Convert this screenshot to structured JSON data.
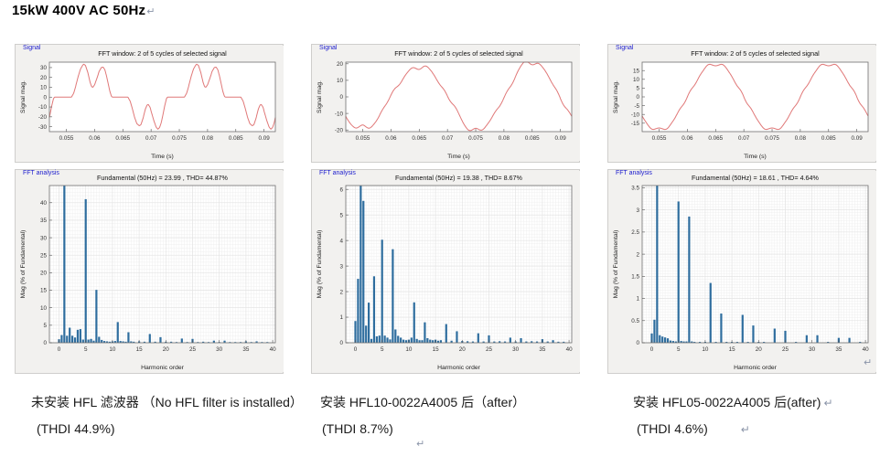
{
  "title": "15kW 400V AC 50Hz",
  "marks": {
    "pilcrow": "↵"
  },
  "colors": {
    "bar": "#2e6d9e",
    "wave": "#e07878",
    "panel_label_blue": "#1b1bcd",
    "panel_bg": "#f2f1ef"
  },
  "captions": [
    {
      "line1": "未安装 HFL 滤波器 （No HFL filter is installed）",
      "line2": "(THDI 44.9%)"
    },
    {
      "line1": "安装 HFL10-0022A4005 后（after）",
      "line2": "(THDI 8.7%)"
    },
    {
      "line1": "安装 HFL05-0022A4005 后(after)",
      "line2": "(THDI 4.6%)"
    }
  ],
  "chart_data": [
    {
      "id": "signal-1",
      "type": "line",
      "kind": "signal",
      "panel_label": "Signal",
      "title": "FFT window: 2 of 5 cycles of selected signal",
      "xlabel": "Time (s)",
      "ylabel": "Signal mag.",
      "xlim": [
        52,
        92
      ],
      "ylim": [
        -35,
        35.5
      ],
      "xticks": [
        [
          55,
          "0.055"
        ],
        [
          60,
          "0.06"
        ],
        [
          65,
          "0.065"
        ],
        [
          70,
          "0.07"
        ],
        [
          75,
          "0.075"
        ],
        [
          80,
          "0.08"
        ],
        [
          85,
          "0.085"
        ],
        [
          90,
          "0.09"
        ]
      ],
      "yticks": [
        [
          -30,
          "-30"
        ],
        [
          -20,
          "-20"
        ],
        [
          -10,
          "-10"
        ],
        [
          0,
          "0"
        ],
        [
          10,
          "10"
        ],
        [
          20,
          "20"
        ],
        [
          30,
          "30"
        ]
      ],
      "waveform": {
        "mode": "samples",
        "period_ms": 20,
        "cycle_start_ms": 52.9,
        "points": [
          [
            0,
            0
          ],
          [
            3.0,
            0
          ],
          [
            3.4,
            4
          ],
          [
            3.8,
            12
          ],
          [
            4.2,
            21
          ],
          [
            4.6,
            28.5
          ],
          [
            5.0,
            32.5
          ],
          [
            5.2,
            33.5
          ],
          [
            5.5,
            32
          ],
          [
            5.9,
            25
          ],
          [
            6.3,
            15
          ],
          [
            6.6,
            10.5
          ],
          [
            6.8,
            10
          ],
          [
            7.1,
            12.5
          ],
          [
            7.5,
            19
          ],
          [
            7.9,
            26
          ],
          [
            8.3,
            30
          ],
          [
            8.6,
            30.5
          ],
          [
            8.9,
            28
          ],
          [
            9.2,
            22
          ],
          [
            9.5,
            14
          ],
          [
            9.8,
            6
          ],
          [
            10.1,
            0.5
          ],
          [
            10.3,
            0
          ],
          [
            13.0,
            0
          ],
          [
            13.4,
            -4
          ],
          [
            13.8,
            -12
          ],
          [
            14.2,
            -21
          ],
          [
            14.6,
            -27
          ],
          [
            15.0,
            -29
          ],
          [
            15.3,
            -28
          ],
          [
            15.7,
            -21
          ],
          [
            16.1,
            -12
          ],
          [
            16.4,
            -8
          ],
          [
            16.6,
            -7.5
          ],
          [
            16.9,
            -10
          ],
          [
            17.2,
            -16
          ],
          [
            17.6,
            -24
          ],
          [
            18.0,
            -30.5
          ],
          [
            18.3,
            -32.5
          ],
          [
            18.6,
            -31
          ],
          [
            18.9,
            -26
          ],
          [
            19.2,
            -18
          ],
          [
            19.5,
            -9
          ],
          [
            19.8,
            -2
          ],
          [
            20,
            0
          ]
        ]
      }
    },
    {
      "id": "fft-1",
      "type": "bar",
      "kind": "fft",
      "panel_label": "FFT analysis",
      "title": "Fundamental (50Hz) = 23.99 , THD= 44.87%",
      "xlabel": "Harmonic order",
      "ylabel": "Mag (% of Fundamental)",
      "xlim": [
        -1.8,
        40.5
      ],
      "ylim": [
        0,
        44.9
      ],
      "xticks": [
        [
          0,
          "0"
        ],
        [
          5,
          "5"
        ],
        [
          10,
          "10"
        ],
        [
          15,
          "15"
        ],
        [
          20,
          "20"
        ],
        [
          25,
          "25"
        ],
        [
          30,
          "30"
        ],
        [
          35,
          "35"
        ],
        [
          40,
          "40"
        ]
      ],
      "yticks": [
        [
          0,
          "0"
        ],
        [
          5,
          "5"
        ],
        [
          10,
          "10"
        ],
        [
          15,
          "15"
        ],
        [
          20,
          "20"
        ],
        [
          25,
          "25"
        ],
        [
          30,
          "30"
        ],
        [
          35,
          "35"
        ],
        [
          40,
          "40"
        ]
      ],
      "grid_minor": [
        0.5,
        1
      ],
      "bars": [
        [
          0,
          1.0
        ],
        [
          0.5,
          2.2
        ],
        [
          1,
          100
        ],
        [
          1.5,
          2.0
        ],
        [
          2,
          4.3
        ],
        [
          2.5,
          2.0
        ],
        [
          3,
          1.5
        ],
        [
          3.5,
          3.7
        ],
        [
          4,
          3.9
        ],
        [
          4.5,
          0.9
        ],
        [
          5,
          41.0
        ],
        [
          5.5,
          0.9
        ],
        [
          6,
          1.1
        ],
        [
          6.5,
          0.6
        ],
        [
          7,
          15.1
        ],
        [
          7.5,
          1.7
        ],
        [
          8,
          0.8
        ],
        [
          8.5,
          0.5
        ],
        [
          9,
          0.4
        ],
        [
          9.5,
          0.3
        ],
        [
          10,
          0.4
        ],
        [
          10.5,
          0.5
        ],
        [
          11,
          5.9
        ],
        [
          11.5,
          0.5
        ],
        [
          12,
          0.4
        ],
        [
          12.5,
          0.3
        ],
        [
          13,
          3.0
        ],
        [
          13.5,
          0.4
        ],
        [
          14,
          0.3
        ],
        [
          15,
          0.4
        ],
        [
          16,
          0.3
        ],
        [
          17,
          2.5
        ],
        [
          18,
          0.3
        ],
        [
          19,
          1.6
        ],
        [
          20,
          0.3
        ],
        [
          21,
          0.3
        ],
        [
          22,
          0.2
        ],
        [
          23,
          1.2
        ],
        [
          24,
          0.2
        ],
        [
          25,
          1.1
        ],
        [
          26,
          0.2
        ],
        [
          27,
          0.3
        ],
        [
          28,
          0.2
        ],
        [
          29,
          0.6
        ],
        [
          30,
          0.2
        ],
        [
          31,
          0.6
        ],
        [
          32,
          0.2
        ],
        [
          33,
          0.2
        ],
        [
          34,
          0.2
        ],
        [
          35,
          0.4
        ],
        [
          36,
          0.2
        ],
        [
          37,
          0.4
        ],
        [
          38,
          0.2
        ],
        [
          39,
          0.2
        ]
      ]
    },
    {
      "id": "signal-2",
      "type": "line",
      "kind": "signal",
      "panel_label": "Signal",
      "title": "FFT window: 2 of 5 cycles of selected signal",
      "xlabel": "Time (s)",
      "ylabel": "Signal mag.",
      "xlim": [
        52,
        92
      ],
      "ylim": [
        -21,
        21
      ],
      "xticks": [
        [
          55,
          "0.055"
        ],
        [
          60,
          "0.06"
        ],
        [
          65,
          "0.065"
        ],
        [
          70,
          "0.07"
        ],
        [
          75,
          "0.075"
        ],
        [
          80,
          "0.08"
        ],
        [
          85,
          "0.085"
        ],
        [
          90,
          "0.09"
        ]
      ],
      "yticks": [
        [
          -20,
          "-20"
        ],
        [
          -10,
          "-10"
        ],
        [
          0,
          "0"
        ],
        [
          10,
          "10"
        ],
        [
          20,
          "20"
        ]
      ],
      "waveform": {
        "mode": "harmonics",
        "period_ms": 20,
        "zero_cross_ms": 60,
        "components": [
          [
            1,
            19.8,
            0
          ],
          [
            0.5,
            0.45,
            210
          ],
          [
            1.5,
            1.05,
            160
          ],
          [
            2.5,
            0.3,
            40
          ],
          [
            3.5,
            0.5,
            80
          ],
          [
            5,
            0.8,
            170
          ],
          [
            7,
            0.72,
            10
          ],
          [
            11,
            0.3,
            0
          ]
        ]
      }
    },
    {
      "id": "fft-2",
      "type": "bar",
      "kind": "fft",
      "panel_label": "FFT analysis",
      "title": "Fundamental (50Hz) = 19.38 , THD= 8.67%",
      "xlabel": "Harmonic order",
      "ylabel": "Mag (% of Fundamental)",
      "xlim": [
        -1.8,
        40.5
      ],
      "ylim": [
        0,
        6.15
      ],
      "xticks": [
        [
          0,
          "0"
        ],
        [
          5,
          "5"
        ],
        [
          10,
          "10"
        ],
        [
          15,
          "15"
        ],
        [
          20,
          "20"
        ],
        [
          25,
          "25"
        ],
        [
          30,
          "30"
        ],
        [
          35,
          "35"
        ],
        [
          40,
          "40"
        ]
      ],
      "yticks": [
        [
          0,
          "0"
        ],
        [
          1,
          "1"
        ],
        [
          2,
          "2"
        ],
        [
          3,
          "3"
        ],
        [
          4,
          "4"
        ],
        [
          5,
          "5"
        ],
        [
          6,
          "6"
        ]
      ],
      "grid_minor": [
        0.5,
        0.125
      ],
      "bars": [
        [
          0,
          0.85
        ],
        [
          0.5,
          2.5
        ],
        [
          1,
          100
        ],
        [
          1.5,
          5.55
        ],
        [
          2,
          0.67
        ],
        [
          2.5,
          1.57
        ],
        [
          3,
          0.15
        ],
        [
          3.5,
          2.6
        ],
        [
          4,
          0.25
        ],
        [
          4.5,
          0.28
        ],
        [
          5,
          4.03
        ],
        [
          5.5,
          0.28
        ],
        [
          6,
          0.2
        ],
        [
          6.5,
          0.13
        ],
        [
          7,
          3.66
        ],
        [
          7.5,
          0.52
        ],
        [
          8,
          0.27
        ],
        [
          8.5,
          0.2
        ],
        [
          9,
          0.12
        ],
        [
          9.5,
          0.1
        ],
        [
          10,
          0.12
        ],
        [
          10.5,
          0.2
        ],
        [
          11,
          1.58
        ],
        [
          11.5,
          0.15
        ],
        [
          12,
          0.1
        ],
        [
          12.5,
          0.1
        ],
        [
          13,
          0.8
        ],
        [
          13.5,
          0.18
        ],
        [
          14,
          0.12
        ],
        [
          14.5,
          0.1
        ],
        [
          15,
          0.12
        ],
        [
          15.5,
          0.08
        ],
        [
          16,
          0.1
        ],
        [
          17,
          0.73
        ],
        [
          18,
          0.08
        ],
        [
          19,
          0.45
        ],
        [
          20,
          0.07
        ],
        [
          21,
          0.06
        ],
        [
          22,
          0.05
        ],
        [
          23,
          0.37
        ],
        [
          24,
          0.05
        ],
        [
          25,
          0.29
        ],
        [
          26,
          0.05
        ],
        [
          27,
          0.06
        ],
        [
          28,
          0.05
        ],
        [
          29,
          0.2
        ],
        [
          30,
          0.05
        ],
        [
          31,
          0.18
        ],
        [
          32,
          0.05
        ],
        [
          33,
          0.06
        ],
        [
          34,
          0.05
        ],
        [
          35,
          0.14
        ],
        [
          36,
          0.05
        ],
        [
          37,
          0.1
        ],
        [
          38,
          0.04
        ],
        [
          39,
          0.04
        ]
      ]
    },
    {
      "id": "signal-3",
      "type": "line",
      "kind": "signal",
      "panel_label": "Signal",
      "title": "FFT window: 2 of 5 cycles of selected signal",
      "xlabel": "Time (s)",
      "ylabel": "Signal mag.",
      "xlim": [
        52,
        92
      ],
      "ylim": [
        -19.8,
        19.8
      ],
      "xticks": [
        [
          55,
          "0.055"
        ],
        [
          60,
          "0.06"
        ],
        [
          65,
          "0.065"
        ],
        [
          70,
          "0.07"
        ],
        [
          75,
          "0.075"
        ],
        [
          80,
          "0.08"
        ],
        [
          85,
          "0.085"
        ],
        [
          90,
          "0.09"
        ]
      ],
      "yticks": [
        [
          -15,
          "-15"
        ],
        [
          -10,
          "-10"
        ],
        [
          -5,
          "-5"
        ],
        [
          0,
          "0"
        ],
        [
          5,
          "5"
        ],
        [
          10,
          "10"
        ],
        [
          15,
          "15"
        ]
      ],
      "waveform": {
        "mode": "harmonics",
        "period_ms": 20,
        "zero_cross_ms": 60,
        "components": [
          [
            1,
            19.0,
            0
          ],
          [
            5,
            0.6,
            180
          ],
          [
            7,
            0.54,
            0
          ],
          [
            11,
            0.25,
            0
          ],
          [
            13,
            0.12,
            0
          ]
        ]
      }
    },
    {
      "id": "fft-3",
      "type": "bar",
      "kind": "fft",
      "panel_label": "FFT analysis",
      "title": "Fundamental (50Hz) = 18.61 , THD= 4.64%",
      "xlabel": "Harmonic order",
      "ylabel": "Mag (% of Fundamental)",
      "xlim": [
        -1.8,
        40.5
      ],
      "ylim": [
        0,
        3.55
      ],
      "xticks": [
        [
          0,
          "0"
        ],
        [
          5,
          "5"
        ],
        [
          10,
          "10"
        ],
        [
          15,
          "15"
        ],
        [
          20,
          "20"
        ],
        [
          25,
          "25"
        ],
        [
          30,
          "30"
        ],
        [
          35,
          "35"
        ],
        [
          40,
          "40"
        ]
      ],
      "yticks": [
        [
          0,
          "0"
        ],
        [
          0.5,
          "0.5"
        ],
        [
          1,
          "1"
        ],
        [
          1.5,
          "1.5"
        ],
        [
          2,
          "2"
        ],
        [
          2.5,
          "2.5"
        ],
        [
          3,
          "3"
        ],
        [
          3.5,
          "3.5"
        ]
      ],
      "grid_minor": [
        0.5,
        0.0625
      ],
      "bars": [
        [
          0,
          0.21
        ],
        [
          0.5,
          0.52
        ],
        [
          1,
          100
        ],
        [
          1.5,
          0.17
        ],
        [
          2,
          0.14
        ],
        [
          2.5,
          0.12
        ],
        [
          3,
          0.1
        ],
        [
          3.5,
          0.05
        ],
        [
          4,
          0.04
        ],
        [
          4.5,
          0.03
        ],
        [
          5,
          3.19
        ],
        [
          5.5,
          0.04
        ],
        [
          6,
          0.03
        ],
        [
          6.5,
          0.03
        ],
        [
          7,
          2.85
        ],
        [
          7.5,
          0.03
        ],
        [
          8,
          0.02
        ],
        [
          9,
          0.02
        ],
        [
          10,
          0.02
        ],
        [
          11,
          1.35
        ],
        [
          12,
          0.02
        ],
        [
          13,
          0.66
        ],
        [
          14,
          0.02
        ],
        [
          15,
          0.02
        ],
        [
          16,
          0.02
        ],
        [
          17,
          0.63
        ],
        [
          18,
          0.02
        ],
        [
          19,
          0.39
        ],
        [
          20,
          0.02
        ],
        [
          21,
          0.02
        ],
        [
          23,
          0.32
        ],
        [
          25,
          0.27
        ],
        [
          27,
          0.02
        ],
        [
          29,
          0.17
        ],
        [
          31,
          0.17
        ],
        [
          33,
          0.02
        ],
        [
          35,
          0.11
        ],
        [
          37,
          0.11
        ],
        [
          39,
          0.02
        ]
      ]
    }
  ]
}
